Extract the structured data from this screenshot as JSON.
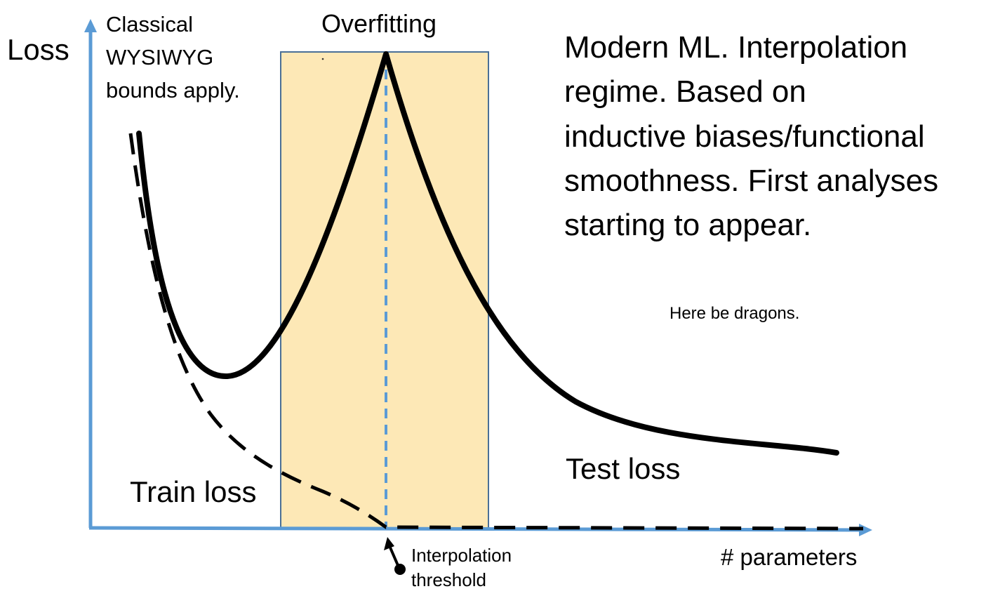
{
  "labels": {
    "y_axis": "Loss",
    "x_axis": "# parameters",
    "classical": "Classical\nWYSIWYG\nbounds apply.",
    "overfitting": "Overfitting",
    "modern": "Modern ML. Interpolation\nregime.  Based on\ninductive biases/functional\nsmoothness. First analyses\nstarting to appear.",
    "dragons": "Here be dragons.",
    "test_loss": "Test loss",
    "train_loss": "Train loss",
    "interpolation_threshold": "Interpolation\nthreshold"
  },
  "colors": {
    "axis": "#5b9bd5",
    "overfit_region_fill": "#fde8b6",
    "overfit_region_border": "#4a6f96",
    "threshold_line": "#5b9bd5",
    "curves": "#000000",
    "pointer": "#000000"
  },
  "curves": {
    "test_loss": {
      "style": "solid",
      "shape": "double descent: falls, minimum, peaks at interpolation threshold, then decays"
    },
    "train_loss": {
      "style": "dashed",
      "shape": "monotonic decrease to zero at interpolation threshold, then stays at zero"
    }
  }
}
